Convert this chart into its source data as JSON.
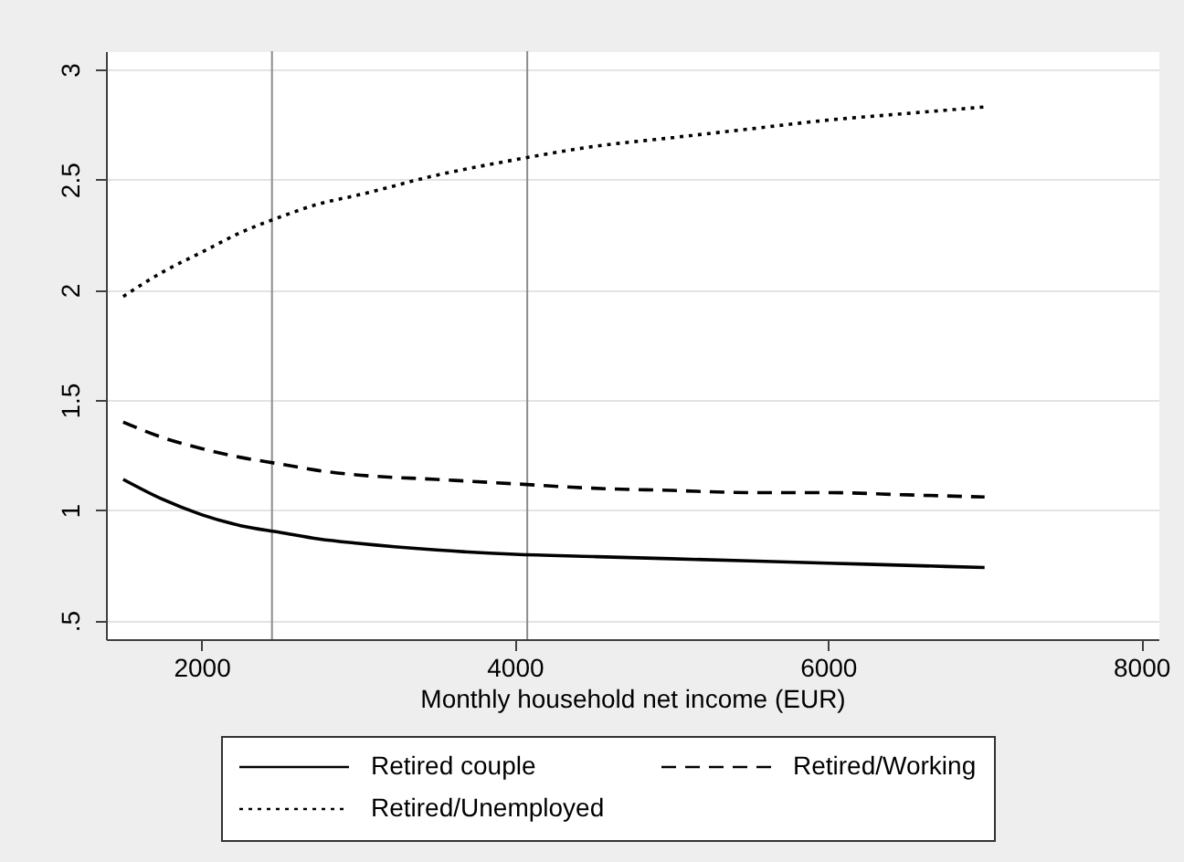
{
  "chart_data": {
    "type": "line",
    "xlabel": "Monthly household net income (EUR)",
    "x": [
      1500,
      1750,
      2000,
      2250,
      2500,
      2750,
      3000,
      3500,
      4000,
      4500,
      5000,
      5500,
      6000,
      6500,
      7000
    ],
    "series": [
      {
        "name": "Retired couple",
        "color": "#000000",
        "line_style": "solid",
        "values": [
          1.14,
          1.05,
          0.98,
          0.93,
          0.9,
          0.87,
          0.85,
          0.82,
          0.8,
          0.79,
          0.78,
          0.77,
          0.76,
          0.75,
          0.74
        ]
      },
      {
        "name": "Retired/Working",
        "color": "#000000",
        "line_style": "dashed",
        "values": [
          1.4,
          1.33,
          1.28,
          1.24,
          1.21,
          1.18,
          1.16,
          1.14,
          1.12,
          1.1,
          1.09,
          1.08,
          1.08,
          1.07,
          1.06
        ]
      },
      {
        "name": "Retired/Unemployed",
        "color": "#000000",
        "line_style": "dotted",
        "values": [
          1.97,
          2.08,
          2.17,
          2.26,
          2.33,
          2.39,
          2.43,
          2.52,
          2.59,
          2.65,
          2.69,
          2.73,
          2.77,
          2.8,
          2.83
        ]
      }
    ],
    "xlim": [
      1390,
      8110
    ],
    "ylim": [
      0.415,
      3.083
    ],
    "xticks": [
      2000,
      4000,
      6000,
      8000
    ],
    "yticks": [
      {
        "value": 0.5,
        "label": ".5"
      },
      1,
      1.5,
      2,
      2.5,
      3
    ],
    "grid": "y",
    "legend": "bottom",
    "marker": "none",
    "ref_lines": [
      {
        "axis": "x",
        "value": 2450,
        "color": "#8c8c8c"
      },
      {
        "axis": "x",
        "value": 4080,
        "color": "#8c8c8c"
      }
    ]
  }
}
